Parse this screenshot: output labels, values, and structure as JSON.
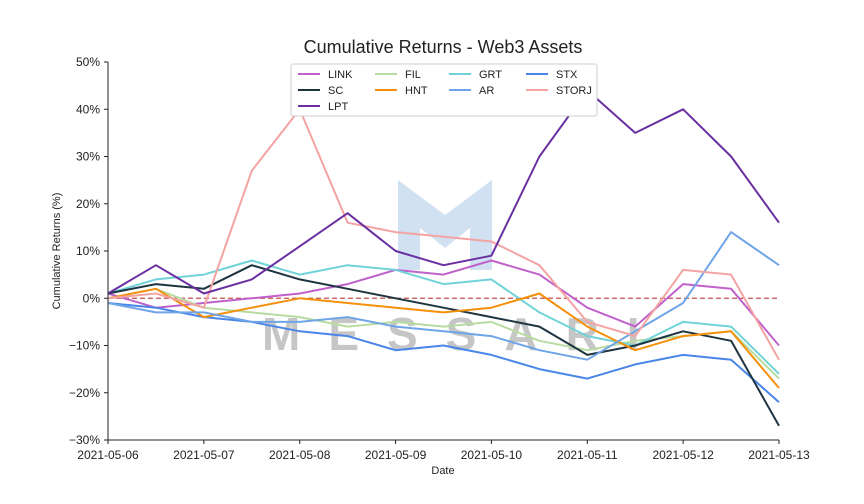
{
  "chart_data": {
    "type": "line",
    "title": "Cumulative Returns - Web3 Assets",
    "xlabel": "Date",
    "ylabel": "Cumulative Returns (%)",
    "x_ticks": [
      "2021-05-06",
      "2021-05-07",
      "2021-05-08",
      "2021-05-09",
      "2021-05-10",
      "2021-05-11",
      "2021-05-12",
      "2021-05-13"
    ],
    "y_ticks": [
      "50%",
      "40%",
      "30%",
      "20%",
      "10%",
      "0%",
      "−10%",
      "−20%",
      "−30%"
    ],
    "xlim": [
      "2021-05-06",
      "2021-05-13"
    ],
    "ylim": [
      -30,
      50
    ],
    "grid": false,
    "legend_position": "top-center",
    "zero_line": {
      "y": 0,
      "color": "#c0504d",
      "style": "dashed"
    },
    "watermark": "MESSARI",
    "series": [
      {
        "name": "LINK",
        "color": "#c061cb",
        "x": [
          "2021-05-06",
          "2021-05-06T12:00",
          "2021-05-07",
          "2021-05-07T12:00",
          "2021-05-08",
          "2021-05-08T12:00",
          "2021-05-09",
          "2021-05-09T12:00",
          "2021-05-10",
          "2021-05-10T12:00",
          "2021-05-11",
          "2021-05-11T12:00",
          "2021-05-12",
          "2021-05-12T12:00",
          "2021-05-13"
        ],
        "y": [
          1,
          -2,
          -1,
          0,
          1,
          3,
          6,
          5,
          8,
          5,
          -2,
          -6,
          3,
          2,
          -10
        ]
      },
      {
        "name": "FIL",
        "color": "#b8dca0",
        "x": [
          "2021-05-06",
          "2021-05-06T12:00",
          "2021-05-07",
          "2021-05-07T12:00",
          "2021-05-08",
          "2021-05-08T12:00",
          "2021-05-09",
          "2021-05-09T12:00",
          "2021-05-10",
          "2021-05-10T12:00",
          "2021-05-11",
          "2021-05-11T12:00",
          "2021-05-12",
          "2021-05-12T12:00",
          "2021-05-13"
        ],
        "y": [
          0,
          2,
          -2,
          -3,
          -4,
          -6,
          -5,
          -6,
          -5,
          -9,
          -11,
          -9,
          -8,
          -7,
          -17
        ]
      },
      {
        "name": "GRT",
        "color": "#6fd3d9",
        "x": [
          "2021-05-06",
          "2021-05-06T12:00",
          "2021-05-07",
          "2021-05-07T12:00",
          "2021-05-08",
          "2021-05-08T12:00",
          "2021-05-09",
          "2021-05-09T12:00",
          "2021-05-10",
          "2021-05-10T12:00",
          "2021-05-11",
          "2021-05-11T12:00",
          "2021-05-12",
          "2021-05-12T12:00",
          "2021-05-13"
        ],
        "y": [
          1,
          4,
          5,
          8,
          5,
          7,
          6,
          3,
          4,
          -3,
          -8,
          -10,
          -5,
          -6,
          -16
        ]
      },
      {
        "name": "STX",
        "color": "#4a86e8",
        "x": [
          "2021-05-06",
          "2021-05-06T12:00",
          "2021-05-07",
          "2021-05-07T12:00",
          "2021-05-08",
          "2021-05-08T12:00",
          "2021-05-09",
          "2021-05-09T12:00",
          "2021-05-10",
          "2021-05-10T12:00",
          "2021-05-11",
          "2021-05-11T12:00",
          "2021-05-12",
          "2021-05-12T12:00",
          "2021-05-13"
        ],
        "y": [
          -1,
          -2,
          -4,
          -5,
          -7,
          -8,
          -11,
          -10,
          -12,
          -15,
          -17,
          -14,
          -12,
          -13,
          -22
        ]
      },
      {
        "name": "SC",
        "color": "#1e3441",
        "x": [
          "2021-05-06",
          "2021-05-06T12:00",
          "2021-05-07",
          "2021-05-07T12:00",
          "2021-05-08",
          "2021-05-08T12:00",
          "2021-05-09",
          "2021-05-09T12:00",
          "2021-05-10",
          "2021-05-10T12:00",
          "2021-05-11",
          "2021-05-11T12:00",
          "2021-05-12",
          "2021-05-12T12:00",
          "2021-05-13"
        ],
        "y": [
          1,
          3,
          2,
          7,
          4,
          2,
          0,
          -2,
          -4,
          -6,
          -12,
          -10,
          -7,
          -9,
          -27
        ]
      },
      {
        "name": "HNT",
        "color": "#f5900c",
        "x": [
          "2021-05-06",
          "2021-05-06T12:00",
          "2021-05-07",
          "2021-05-07T12:00",
          "2021-05-08",
          "2021-05-08T12:00",
          "2021-05-09",
          "2021-05-09T12:00",
          "2021-05-10",
          "2021-05-10T12:00",
          "2021-05-11",
          "2021-05-11T12:00",
          "2021-05-12",
          "2021-05-12T12:00",
          "2021-05-13"
        ],
        "y": [
          0,
          2,
          -4,
          -2,
          0,
          -1,
          -2,
          -3,
          -2,
          1,
          -6,
          -11,
          -8,
          -7,
          -19
        ]
      },
      {
        "name": "AR",
        "color": "#6fa4e8",
        "x": [
          "2021-05-06",
          "2021-05-06T12:00",
          "2021-05-07",
          "2021-05-07T12:00",
          "2021-05-08",
          "2021-05-08T12:00",
          "2021-05-09",
          "2021-05-09T12:00",
          "2021-05-10",
          "2021-05-10T12:00",
          "2021-05-11",
          "2021-05-11T12:00",
          "2021-05-12",
          "2021-05-12T12:00",
          "2021-05-13"
        ],
        "y": [
          -1,
          -3,
          -3,
          -5,
          -5,
          -4,
          -6,
          -7,
          -8,
          -11,
          -13,
          -7,
          -1,
          14,
          7
        ]
      },
      {
        "name": "STORJ",
        "color": "#f4a3a3",
        "x": [
          "2021-05-06",
          "2021-05-06T12:00",
          "2021-05-07",
          "2021-05-07T12:00",
          "2021-05-08",
          "2021-05-08T12:00",
          "2021-05-09",
          "2021-05-09T12:00",
          "2021-05-10",
          "2021-05-10T12:00",
          "2021-05-11",
          "2021-05-11T12:00",
          "2021-05-12",
          "2021-05-12T12:00",
          "2021-05-13"
        ],
        "y": [
          0,
          1,
          -2,
          27,
          40,
          16,
          14,
          13,
          12,
          7,
          -5,
          -8,
          6,
          5,
          -13
        ]
      },
      {
        "name": "LPT",
        "color": "#6a2fa0",
        "x": [
          "2021-05-06",
          "2021-05-06T12:00",
          "2021-05-07",
          "2021-05-07T12:00",
          "2021-05-08",
          "2021-05-08T12:00",
          "2021-05-09",
          "2021-05-09T12:00",
          "2021-05-10",
          "2021-05-10T12:00",
          "2021-05-11",
          "2021-05-11T12:00",
          "2021-05-12",
          "2021-05-12T12:00",
          "2021-05-13"
        ],
        "y": [
          1,
          7,
          1,
          4,
          11,
          18,
          10,
          7,
          9,
          30,
          44,
          35,
          40,
          30,
          16
        ]
      }
    ]
  }
}
